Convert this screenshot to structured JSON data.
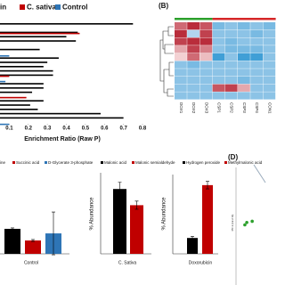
{
  "chart_data": [
    {
      "type": "hbar",
      "legend": [
        "zin",
        "C. sativa",
        "Control"
      ],
      "xlabel": "Enrichment Ratio (Raw P)",
      "xlim": [
        0,
        0.8
      ],
      "xticks": [
        0.1,
        0.2,
        0.3,
        0.4,
        0.5,
        0.6,
        0.7,
        0.8
      ],
      "categories": [
        null,
        null,
        null,
        null,
        null,
        null,
        null,
        null,
        null,
        null,
        null,
        null,
        null,
        null,
        null,
        null,
        null,
        null,
        null,
        null,
        null,
        null,
        null,
        null
      ],
      "series": [
        {
          "name": "zin",
          "color": "#000000",
          "values": [
            0.75,
            null,
            0.46,
            0.4,
            0.45,
            null,
            0.26,
            null,
            0.36,
            0.3,
            0.28,
            0.33,
            0.33,
            null,
            0.28,
            0.28,
            0.22,
            null,
            0.28,
            0.21,
            0.25,
            0.58,
            0.7,
            null
          ]
        },
        {
          "name": "C. sativa",
          "color": "#c00000",
          "values": [
            null,
            null,
            0.47,
            null,
            null,
            null,
            null,
            null,
            null,
            null,
            null,
            null,
            0.1,
            null,
            null,
            null,
            null,
            0.19,
            null,
            null,
            null,
            null,
            null,
            null
          ]
        },
        {
          "name": "Control",
          "color": "#2e75b6",
          "values": [
            null,
            0.05,
            null,
            null,
            null,
            0.05,
            null,
            0.1,
            null,
            null,
            null,
            null,
            null,
            0.08,
            null,
            null,
            null,
            null,
            null,
            null,
            null,
            null,
            null,
            0.1
          ]
        }
      ]
    },
    {
      "type": "heatmap",
      "panel_label": "(B)",
      "columns": [
        "DOX1",
        "DOX2",
        "DOX3",
        "CSP1",
        "CSP2",
        "CSP3",
        "CSP4",
        "CON1"
      ],
      "values": [
        [
          0.6,
          0.9,
          0.7,
          -0.6,
          -0.5,
          -0.6,
          -0.5,
          -0.6
        ],
        [
          0.9,
          -0.3,
          0.8,
          -0.5,
          -0.5,
          -0.5,
          -0.6,
          -0.5
        ],
        [
          0.8,
          0.9,
          0.9,
          -0.5,
          -0.6,
          -0.5,
          -0.5,
          -0.5
        ],
        [
          0.3,
          0.8,
          0.5,
          -0.5,
          -0.6,
          -0.6,
          -0.6,
          -0.5
        ],
        [
          0.1,
          0.6,
          0.2,
          -0.9,
          -0.5,
          -0.9,
          -0.9,
          -0.5
        ],
        [
          -0.5,
          -0.6,
          -0.5,
          -0.5,
          -0.5,
          -0.5,
          -0.5,
          -0.5
        ],
        [
          -0.5,
          -0.5,
          -0.5,
          -0.5,
          -0.5,
          -0.5,
          -0.5,
          -0.5
        ],
        [
          -0.5,
          -0.5,
          -0.5,
          -0.5,
          -0.5,
          -0.6,
          -0.5,
          -0.5
        ],
        [
          -0.5,
          -0.5,
          -0.5,
          0.7,
          0.8,
          0.3,
          -0.5,
          -0.5
        ],
        [
          -0.5,
          -0.5,
          -0.5,
          -0.5,
          -0.5,
          -0.5,
          -0.5,
          -0.5
        ]
      ]
    },
    {
      "type": "bar",
      "categories": [
        "Control"
      ],
      "ylim": [
        0,
        0.35
      ],
      "series": [
        {
          "name": "ine",
          "color": "#000000",
          "values": [
            0.187
          ],
          "errors": [
            0.007
          ]
        },
        {
          "name": "Succinic acid",
          "color": "#c00000",
          "values": [
            0.1
          ],
          "errors": [
            0.007
          ]
        },
        {
          "name": "D-Glycerate 3-phosphate",
          "color": "#2e75b6",
          "values": [
            0.153
          ],
          "errors": [
            0.16
          ]
        }
      ]
    },
    {
      "type": "bar",
      "categories": [
        "C. Sativa"
      ],
      "ylabel": "% Abundance",
      "ylim": [
        0,
        0.3
      ],
      "series": [
        {
          "name": "Malonic acid",
          "color": "#000000",
          "values": [
            0.24
          ],
          "errors": [
            0.025
          ]
        },
        {
          "name": "Malonic semialdehyde",
          "color": "#c00000",
          "values": [
            0.18
          ],
          "errors": [
            0.015
          ]
        }
      ]
    },
    {
      "type": "bar",
      "categories": [
        "Doxorubicin"
      ],
      "ylabel": "% Abundance",
      "ylim": [
        0,
        1.5
      ],
      "series": [
        {
          "name": "Hydrogen peroxide",
          "color": "#000000",
          "values": [
            0.3
          ],
          "errors": [
            0.03
          ]
        },
        {
          "name": "Methylmalonic acid",
          "color": "#c00000",
          "values": [
            1.3
          ],
          "errors": [
            0.07
          ]
        }
      ]
    },
    {
      "type": "scatter",
      "panel_label": "(D)",
      "ylabel": "PC 2 (12.2 %)",
      "xlim": [
        0,
        1
      ],
      "ylim": [
        0,
        1
      ],
      "color": "#2ca02c",
      "x": [
        0.18,
        0.22,
        0.33
      ],
      "values": [
        0.5,
        0.52,
        0.53
      ]
    }
  ]
}
